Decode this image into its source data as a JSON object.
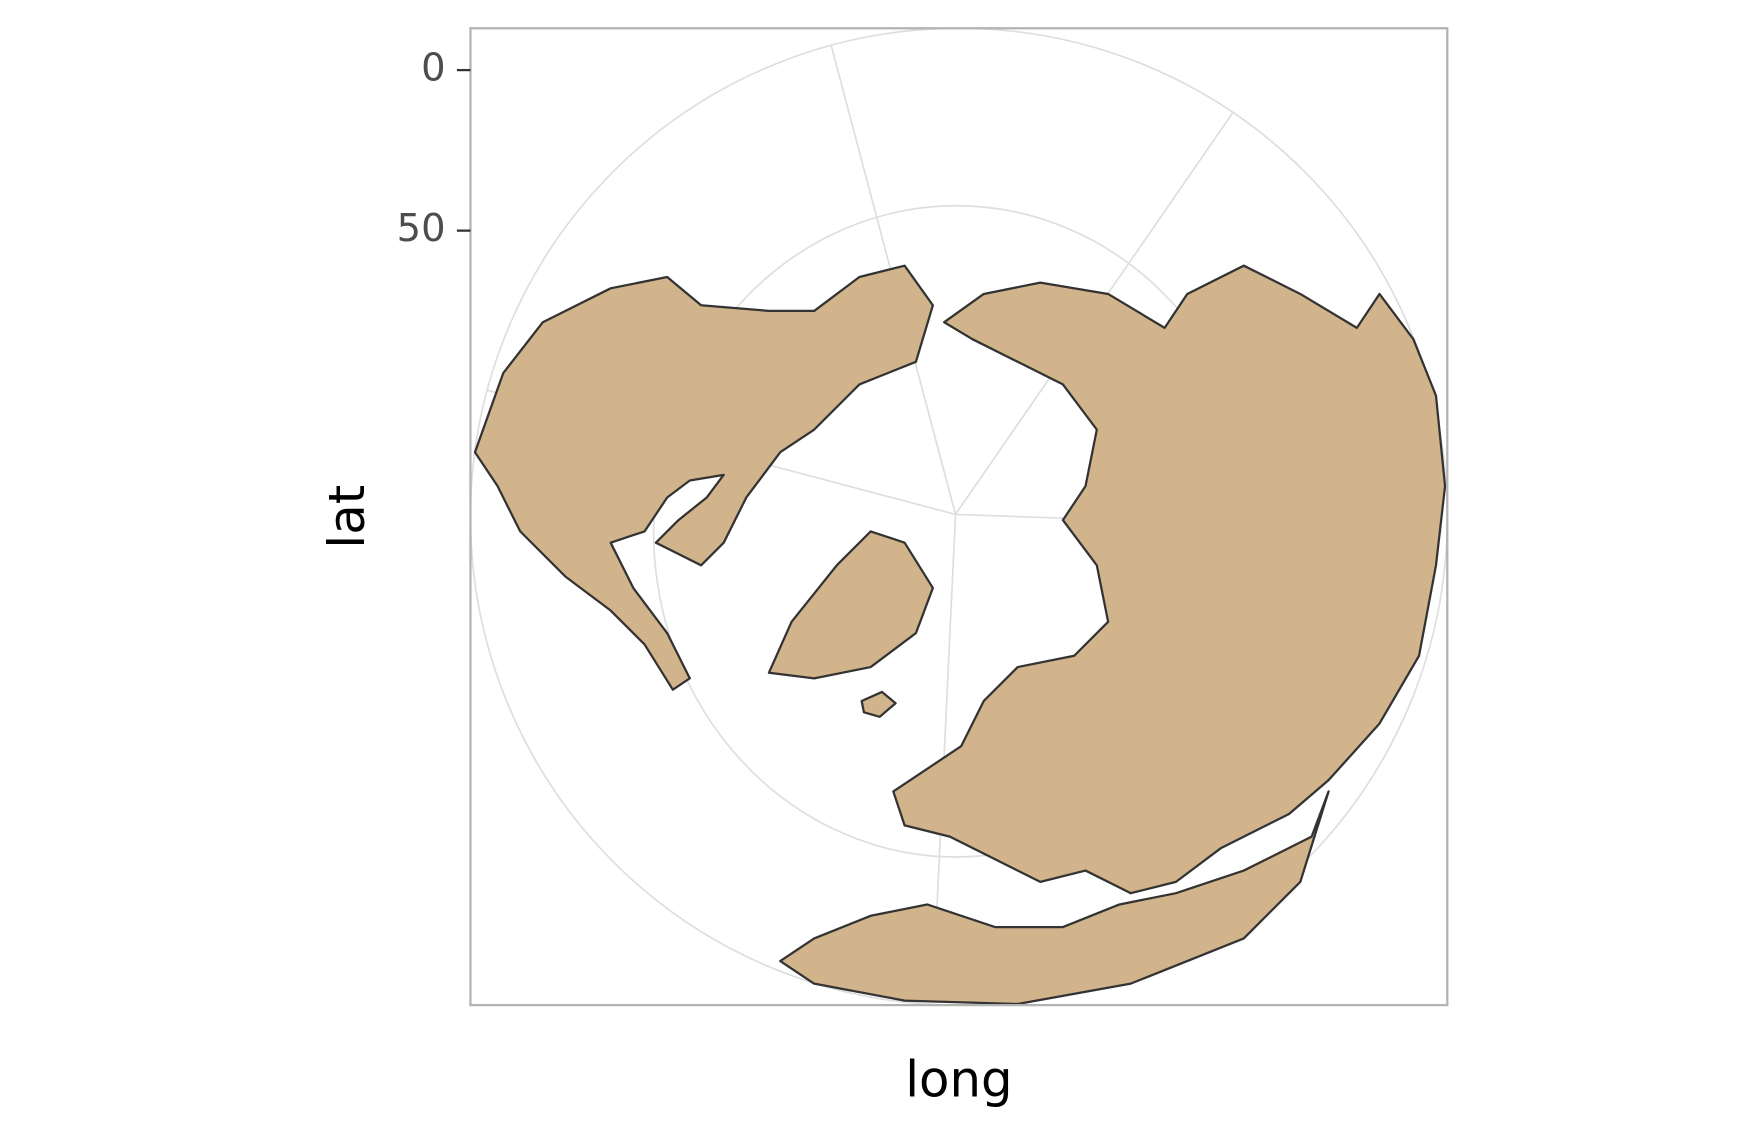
{
  "chart_data": {
    "type": "map",
    "x_label": "long",
    "y_label": "lat",
    "yticks": [
      0,
      50
    ]
  }
}
